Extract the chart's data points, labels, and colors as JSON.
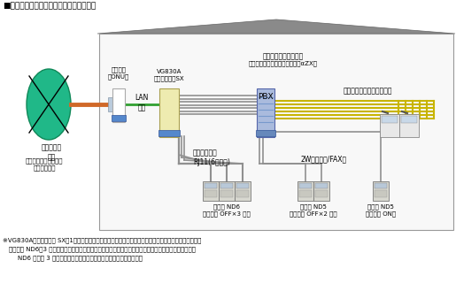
{
  "title": "■ビジネスフォン使用時のアロハ接続実績",
  "bg_color": "#ffffff",
  "fiber_color": "#d06828",
  "lan_color": "#30a030",
  "cable_color": "#909090",
  "yellow_color": "#c8b400",
  "roof_color": "#888888",
  "house_wall_color": "#f5f5f5",
  "onu_color": "#ddeeff",
  "vg_color": "#eeebb0",
  "pbx_color": "#aabbdd",
  "base_color": "#6688bb",
  "note_line1": "※VG830Aゲートウェイ SX「1」にて、アナログ信号に変換しビジネスフォン主装置の手前でアロハを接続",
  "note_line2": "（アロハ ND6　3 台は、ビジネスフォンが鳴動する前に掛かってきた電話番号を表示する。また、アロハ",
  "note_line3": "ND6 接続の 3 回線は、同時着信時も全ての回線で番号表示をする）",
  "label_fiber": "光ファイバ\n回線",
  "label_number": "ナンバーディスプレイ\nサービス加入",
  "label_onu": "終端装置\n（ONU）",
  "label_vg": "VG830A\nゲートウェイSX",
  "label_lan": "LAN\n接続",
  "label_pbx_top": "ビジネスフォン主装置",
  "label_pbx_sub": "（スマートネットコミュニティαZX）",
  "label_pbx": "PBX",
  "label_biz_cable": "ビジネスフォン用ケーブル",
  "label_tel_cable": "電話ケーブル\nRJ11(6極２芯)",
  "label_fax": "2W　複合機/FAX線",
  "label_nd6": "アロハ ND6\n（タイプ OFF×3 台）",
  "label_nd5off": "アロハ ND5\n（タイプ OFF×2 台）",
  "label_nd5on": "アロハ ND5\n（タイプ ON）"
}
